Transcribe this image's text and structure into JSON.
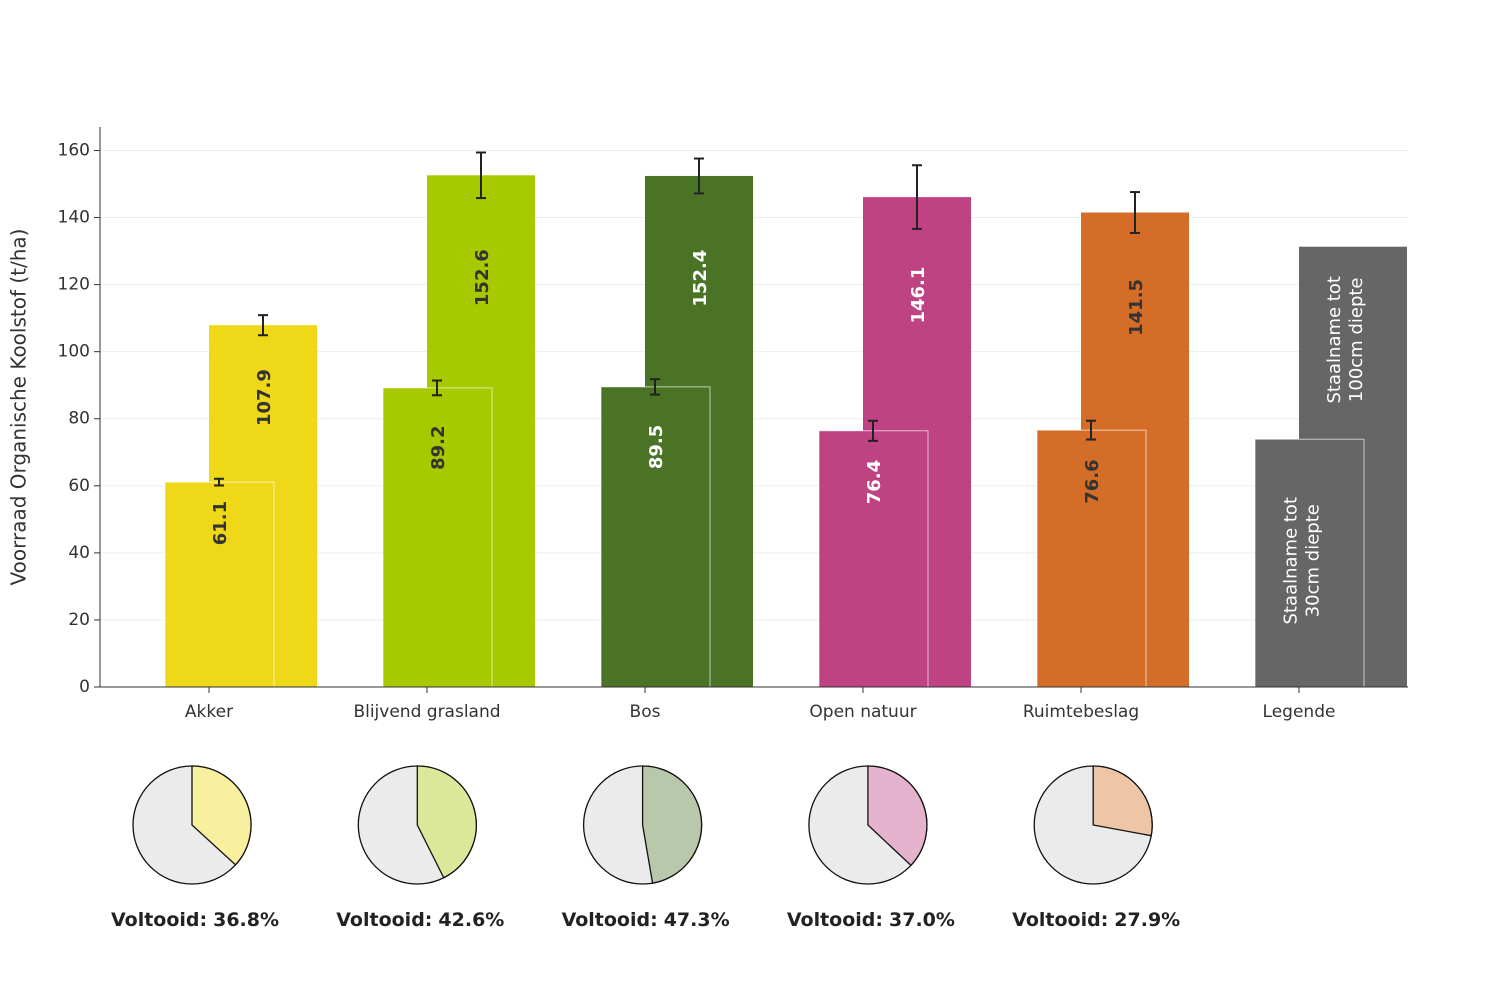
{
  "chart_data": [
    {
      "type": "bar",
      "y_title": "Voorraad Organische Koolstof (t/ha)",
      "categories": [
        "Akker",
        "Blijvend grasland",
        "Bos",
        "Open natuur",
        "Ruimtebeslag",
        "Legende"
      ],
      "series": [
        {
          "name": "Staalname tot 30cm diepte",
          "values": [
            61.1,
            89.2,
            89.5,
            76.4,
            76.6,
            73.9
          ],
          "errors": [
            1,
            2.2,
            2.3,
            3,
            2.8,
            null
          ],
          "colors": [
            "#eed817",
            "#a6c900",
            "#4a7326",
            "#bf4383",
            "#d46d27",
            "#666666"
          ]
        },
        {
          "name": "Staalname tot 100cm diepte",
          "values": [
            107.9,
            152.6,
            152.4,
            146.1,
            141.5,
            131.3
          ],
          "errors": [
            3,
            6.8,
            5.2,
            9.5,
            6.1,
            null
          ],
          "colors": [
            "#eed817",
            "#a6c900",
            "#4a7326",
            "#bf4383",
            "#d46d27",
            "#666666"
          ]
        }
      ],
      "label_colors": [
        "#333333",
        "#333333",
        "#ffffff",
        "#ffffff",
        "#333333",
        "#ffffff"
      ],
      "legend": "last-category",
      "ylim": [
        0,
        167
      ],
      "yticks": [
        0,
        20,
        40,
        60,
        80,
        100,
        120,
        140,
        160
      ],
      "grid": true
    },
    {
      "type": "pie",
      "title": "Voltooid:",
      "values": [
        36.8
      ],
      "value_labels": [
        "36.8%"
      ],
      "color": "#f8ef9f",
      "background": "#ebebeb"
    },
    {
      "type": "pie",
      "title": "Voltooid:",
      "values": [
        42.6
      ],
      "value_labels": [
        "42.6%"
      ],
      "color": "#dbe89a",
      "background": "#ebebeb"
    },
    {
      "type": "pie",
      "title": "Voltooid:",
      "values": [
        47.3
      ],
      "value_labels": [
        "47.3%"
      ],
      "color": "#b9c8ab",
      "background": "#ebebeb"
    },
    {
      "type": "pie",
      "title": "Voltooid:",
      "values": [
        37.0
      ],
      "value_labels": [
        "37.0%"
      ],
      "color": "#e6b3ce",
      "background": "#ebebeb"
    },
    {
      "type": "pie",
      "title": "Voltooid:",
      "values": [
        27.9
      ],
      "value_labels": [
        "27.9%"
      ],
      "color": "#ecc6a6",
      "background": "#ebebeb"
    }
  ]
}
